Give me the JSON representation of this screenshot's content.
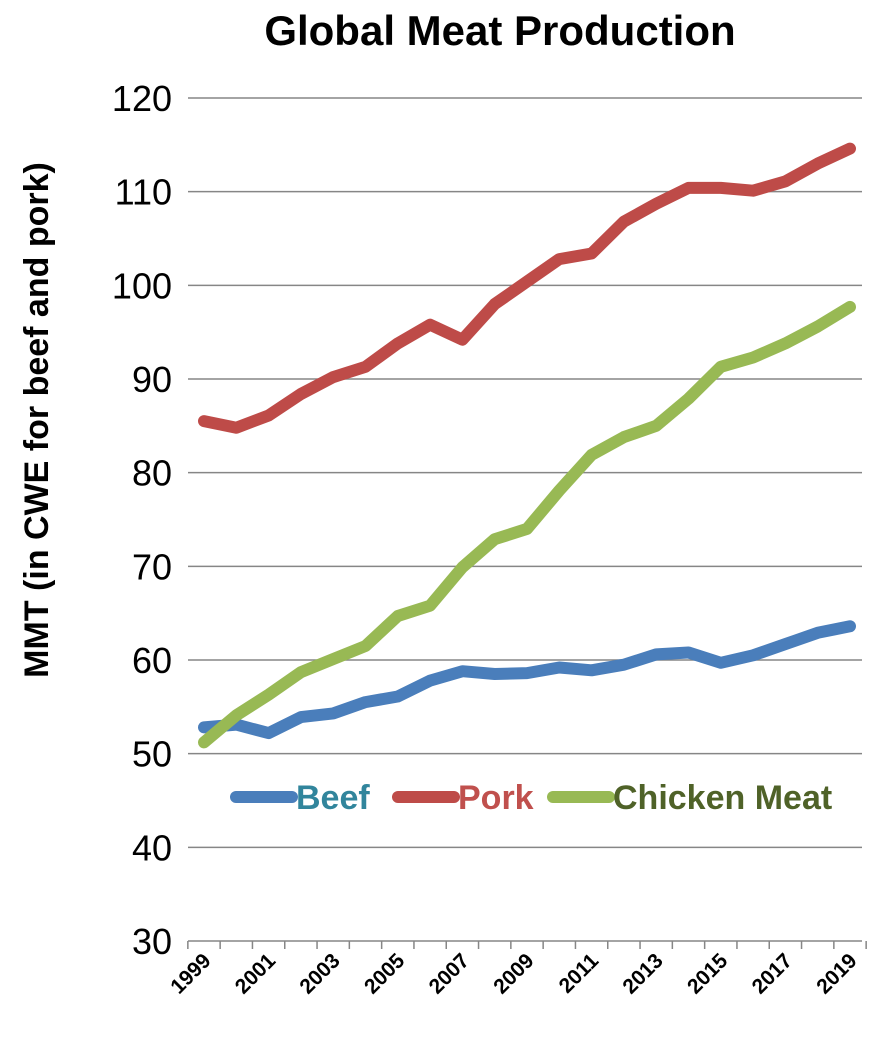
{
  "chart_data": {
    "type": "line",
    "title": "Global Meat Production",
    "xlabel": "",
    "ylabel": "MMT (in CWE for beef and pork)",
    "ylim": [
      30,
      120
    ],
    "yticks": [
      "30",
      "40",
      "50",
      "60",
      "70",
      "80",
      "90",
      "100",
      "110",
      "120"
    ],
    "x": [
      1999,
      2000,
      2001,
      2002,
      2003,
      2004,
      2005,
      2006,
      2007,
      2008,
      2009,
      2010,
      2011,
      2012,
      2013,
      2014,
      2015,
      2016,
      2017,
      2018,
      2019
    ],
    "xtick_labels": [
      "1999",
      "2001",
      "2003",
      "2005",
      "2007",
      "2009",
      "2011",
      "2013",
      "2015",
      "2017",
      "2019"
    ],
    "grid": "horizontal",
    "legend_position": "inside-bottom",
    "series": [
      {
        "name": "Beef",
        "color": "#4a7ebb",
        "label_color": "#31859c",
        "values": [
          52.8,
          53.1,
          52.2,
          53.9,
          54.3,
          55.5,
          56.1,
          57.8,
          58.8,
          58.5,
          58.6,
          59.2,
          58.9,
          59.5,
          60.6,
          60.8,
          59.7,
          60.5,
          61.7,
          62.9,
          63.6
        ]
      },
      {
        "name": "Pork",
        "color": "#be4b48",
        "label_color": "#c0504d",
        "values": [
          85.5,
          84.8,
          86.1,
          88.4,
          90.2,
          91.3,
          93.8,
          95.8,
          94.2,
          98.0,
          100.4,
          102.8,
          103.4,
          106.8,
          108.7,
          110.4,
          110.4,
          110.1,
          111.1,
          113.0,
          114.6
        ]
      },
      {
        "name": "Chicken Meat",
        "color": "#98b954",
        "label_color": "#4f6228",
        "values": [
          51.2,
          54.1,
          56.3,
          58.7,
          60.1,
          61.5,
          64.7,
          65.8,
          69.9,
          72.9,
          74.0,
          78.1,
          81.9,
          83.8,
          85.0,
          87.9,
          91.3,
          92.3,
          93.8,
          95.6,
          97.7
        ]
      }
    ]
  }
}
